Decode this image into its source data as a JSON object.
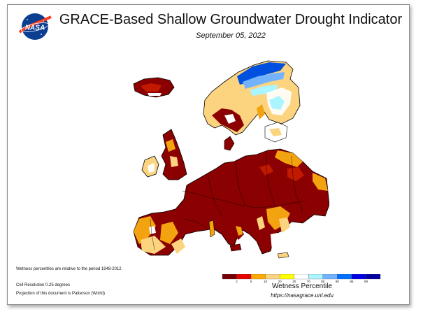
{
  "header": {
    "logo_text": "NASA",
    "title": "GRACE-Based Shallow Groundwater Drought Indicator",
    "date": "September 05, 2022"
  },
  "notes": {
    "period": "Wetness percentiles are relative to the period 1948-2012",
    "resolution": "Cell Resolution 0.25 degrees",
    "projection": "Projection of this document is Patterson (World)"
  },
  "legend": {
    "title": "Wetness Percentile",
    "url": "https://nasagrace.unl.edu",
    "ticks": [
      "2",
      "5",
      "10",
      "20",
      "30",
      "70",
      "80",
      "90",
      "95",
      "98"
    ],
    "colors": [
      "#730000",
      "#e60000",
      "#ffaa00",
      "#fcd37f",
      "#ffff00",
      "#ffffff",
      "#aaf5ff",
      "#73b2ff",
      "#0070ff",
      "#0000e0",
      "#0000a0"
    ]
  },
  "map_colors": {
    "land_exceptional": "#8b0000",
    "land_extreme": "#c21a00",
    "land_severe": "#f2a30f",
    "land_moderate": "#fcd37f",
    "land_normal": "#ffffff",
    "wet_light": "#aaf5ff",
    "wet_medium": "#73b2ff",
    "wet_strong": "#0050e0"
  }
}
